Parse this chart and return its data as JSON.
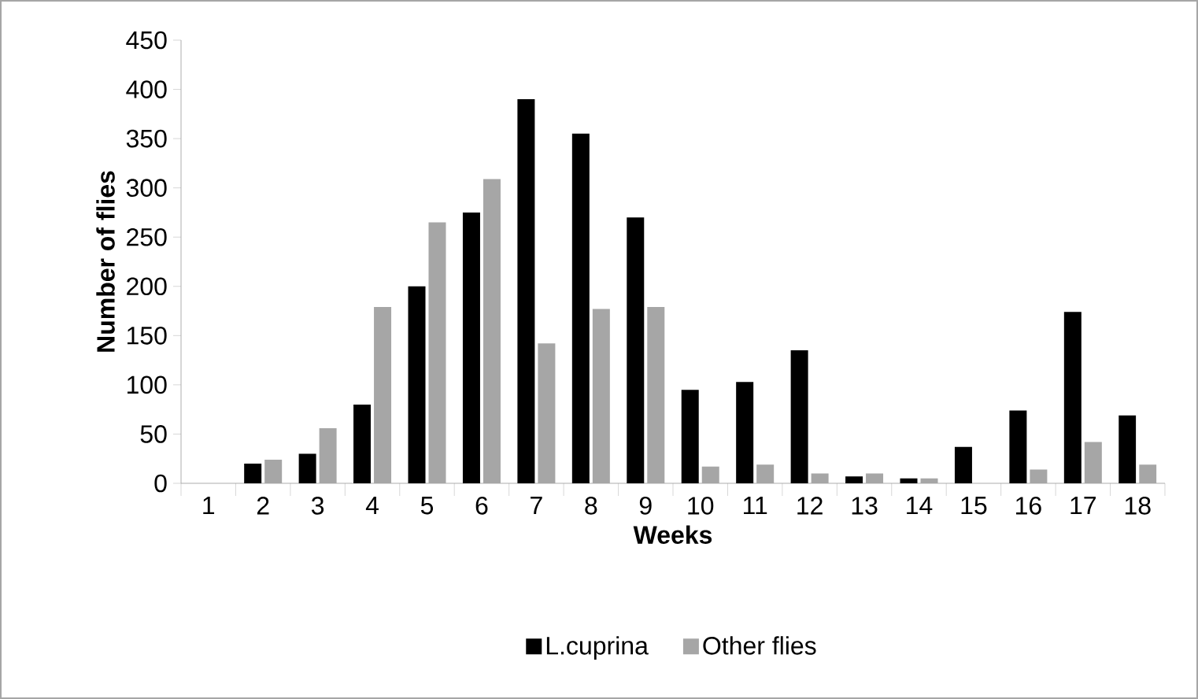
{
  "chart_data": {
    "type": "bar",
    "xlabel": "Weeks",
    "ylabel": "Number of flies",
    "categories": [
      "1",
      "2",
      "3",
      "4",
      "5",
      "6",
      "7",
      "8",
      "9",
      "10",
      "11",
      "12",
      "13",
      "14",
      "15",
      "16",
      "17",
      "18"
    ],
    "series": [
      {
        "name": "L.cuprina",
        "color": "#000000",
        "values": [
          0,
          20,
          30,
          80,
          200,
          275,
          390,
          355,
          270,
          95,
          103,
          135,
          7,
          5,
          37,
          74,
          174,
          69
        ]
      },
      {
        "name": "Other flies",
        "color": "#a6a6a6",
        "values": [
          0,
          24,
          56,
          179,
          265,
          309,
          142,
          177,
          179,
          17,
          19,
          10,
          10,
          5,
          0,
          14,
          42,
          19
        ]
      }
    ],
    "ylim": [
      0,
      450
    ],
    "yticks": [
      0,
      50,
      100,
      150,
      200,
      250,
      300,
      350,
      400,
      450
    ],
    "legend": "bottom"
  }
}
